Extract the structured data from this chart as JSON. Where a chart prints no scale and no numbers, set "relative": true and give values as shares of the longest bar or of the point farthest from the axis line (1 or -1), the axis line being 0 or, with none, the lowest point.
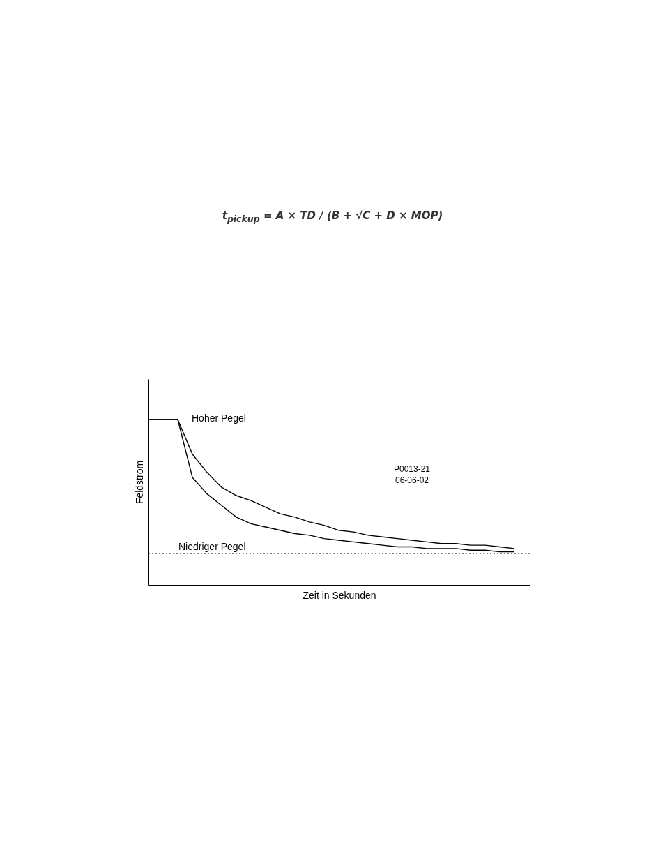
{
  "chart_data": {
    "type": "line",
    "relative": true,
    "xlabel": "Zeit in Sekunden",
    "ylabel": "Feldstrom",
    "categories": [
      null,
      null,
      null,
      null,
      null,
      null,
      null,
      null,
      null,
      null,
      null,
      null,
      null,
      null,
      null,
      null,
      null,
      null,
      null,
      null,
      null,
      null,
      null,
      null,
      null,
      null
    ],
    "series": [
      {
        "color": "#000000",
        "line_style": "solid",
        "values": [
          1,
          1,
          1,
          0.79,
          0.68,
          0.59,
          0.54,
          0.51,
          0.47,
          0.43,
          0.41,
          0.38,
          0.36,
          0.33,
          0.32,
          0.3,
          0.29,
          0.28,
          0.27,
          0.26,
          0.25,
          0.25,
          0.24,
          0.24,
          0.23,
          0.22
        ]
      },
      {
        "color": "#000000",
        "line_style": "solid",
        "values": [
          1,
          1,
          1,
          0.65,
          0.55,
          0.48,
          0.41,
          0.37,
          0.35,
          0.33,
          0.31,
          0.3,
          0.28,
          0.27,
          0.26,
          0.25,
          0.24,
          0.23,
          0.23,
          0.22,
          0.22,
          0.22,
          0.21,
          0.21,
          0.2,
          0.2
        ]
      }
    ],
    "ref_lines": [
      {
        "axis": "y",
        "value": 0.19,
        "label": "Niedriger Pegel",
        "color": "#000000",
        "line_style": "dotted"
      }
    ],
    "annotations": [
      "t$_{pickup}$ = A × TD / (B + √C + D × MOP)",
      "Hoher Pegel",
      "P0013-21",
      "06-06-02"
    ],
    "grid": false
  }
}
